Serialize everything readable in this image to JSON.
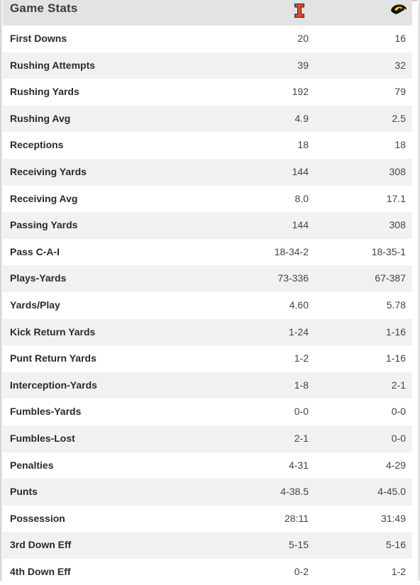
{
  "header": {
    "title": "Game Stats",
    "home_team_icon": "illinois-block-i-icon",
    "away_team_icon": "iowa-hawkeye-icon"
  },
  "colors": {
    "header_bg": "#e3e3e3",
    "alt_row_bg": "#f1f1f1",
    "illinois_orange": "#e84a27",
    "illinois_navy": "#13294b",
    "iowa_gold": "#ffcd00",
    "iowa_black": "#000000"
  },
  "stats": [
    {
      "label": "First Downs",
      "home": "20",
      "away": "16"
    },
    {
      "label": "Rushing Attempts",
      "home": "39",
      "away": "32"
    },
    {
      "label": "Rushing Yards",
      "home": "192",
      "away": "79"
    },
    {
      "label": "Rushing Avg",
      "home": "4.9",
      "away": "2.5"
    },
    {
      "label": "Receptions",
      "home": "18",
      "away": "18"
    },
    {
      "label": "Receiving Yards",
      "home": "144",
      "away": "308"
    },
    {
      "label": "Receiving Avg",
      "home": "8.0",
      "away": "17.1"
    },
    {
      "label": "Passing Yards",
      "home": "144",
      "away": "308"
    },
    {
      "label": "Pass C-A-I",
      "home": "18-34-2",
      "away": "18-35-1"
    },
    {
      "label": "Plays-Yards",
      "home": "73-336",
      "away": "67-387"
    },
    {
      "label": "Yards/Play",
      "home": "4.60",
      "away": "5.78"
    },
    {
      "label": "Kick Return Yards",
      "home": "1-24",
      "away": "1-16"
    },
    {
      "label": "Punt Return Yards",
      "home": "1-2",
      "away": "1-16"
    },
    {
      "label": "Interception-Yards",
      "home": "1-8",
      "away": "2-1"
    },
    {
      "label": "Fumbles-Yards",
      "home": "0-0",
      "away": "0-0"
    },
    {
      "label": "Fumbles-Lost",
      "home": "2-1",
      "away": "0-0"
    },
    {
      "label": "Penalties",
      "home": "4-31",
      "away": "4-29"
    },
    {
      "label": "Punts",
      "home": "4-38.5",
      "away": "4-45.0"
    },
    {
      "label": "Possession",
      "home": "28:11",
      "away": "31:49"
    },
    {
      "label": "3rd Down Eff",
      "home": "5-15",
      "away": "5-16"
    },
    {
      "label": "4th Down Eff",
      "home": "0-2",
      "away": "1-2"
    }
  ]
}
